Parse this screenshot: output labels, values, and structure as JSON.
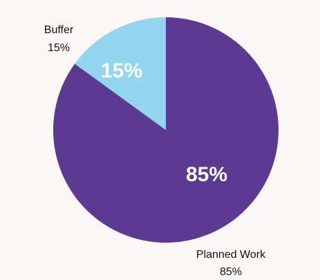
{
  "chart_data": {
    "type": "pie",
    "slices": [
      {
        "name": "Planned Work",
        "value": 85,
        "pct_label": "85%",
        "ext_pct_label": "85%",
        "color": "#5c3a92"
      },
      {
        "name": "Buffer",
        "value": 15,
        "pct_label": "15%",
        "ext_pct_label": "15%",
        "color": "#94d6ef"
      }
    ]
  }
}
